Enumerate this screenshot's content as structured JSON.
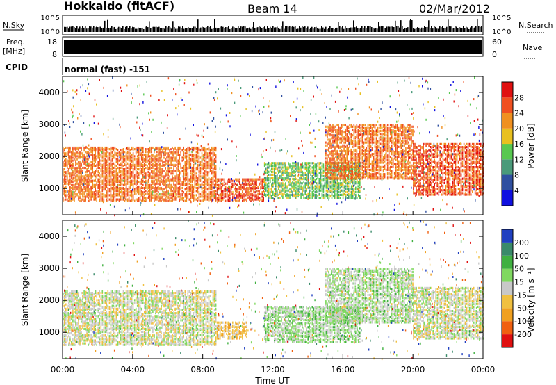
{
  "header": {
    "radar": "Hokkaido (fitACF)",
    "beam": "Beam 14",
    "date": "02/Mar/2012"
  },
  "strips": {
    "nsky_label": "N.Sky",
    "nsearch_label": "N.Search",
    "noise_ticks": [
      "10^5",
      "10^0"
    ],
    "freq_label_top": "Freq.",
    "freq_label_bottom": "[MHz]",
    "freq_ticks": [
      "18",
      "8"
    ],
    "nave_label": "Nave",
    "nave_ticks": [
      "60",
      "0"
    ],
    "cpid_label": "CPID",
    "cpid_text": "normal (fast) -151"
  },
  "axes": {
    "xlabel": "Time UT",
    "xticks": [
      "00:00",
      "04:00",
      "08:00",
      "12:00",
      "16:00",
      "20:00",
      "00:00"
    ],
    "ylabel": "Slant Range [km]",
    "yticks": [
      "1000",
      "2000",
      "3000",
      "4000"
    ]
  },
  "colorbars": {
    "power": {
      "label": "Power [dB]",
      "ticks": [
        "4",
        "8",
        "12",
        "16",
        "20",
        "24",
        "28"
      ],
      "colors": [
        "#1010e0",
        "#3050a0",
        "#4a9a7a",
        "#58c850",
        "#e8c020",
        "#f09020",
        "#f05020",
        "#e01010"
      ]
    },
    "velocity": {
      "label": "Velocity [m s⁻¹]",
      "ticks": [
        "200",
        "100",
        "50",
        "15",
        "-15",
        "-50",
        "-100",
        "-200"
      ],
      "colors": [
        "#2040c0",
        "#3a8a6a",
        "#40b040",
        "#80d860",
        "#c8c8c8",
        "#f0c040",
        "#f0a020",
        "#f06010",
        "#e01010"
      ]
    }
  },
  "chart_data": [
    {
      "type": "heatmap",
      "title": "Power",
      "x_range": [
        "00:00",
        "24:00"
      ],
      "ylim": [
        180,
        4500
      ],
      "value_label": "Power [dB]",
      "clim": [
        0,
        32
      ],
      "regions": [
        {
          "t_start": 0,
          "t_end": 8.8,
          "range_start": 600,
          "range_end": 2300,
          "value": 24
        },
        {
          "t_start": 8.8,
          "t_end": 11.5,
          "range_start": 600,
          "range_end": 1300,
          "value": 26
        },
        {
          "t_start": 11.5,
          "t_end": 17,
          "range_start": 700,
          "range_end": 1800,
          "value": 14
        },
        {
          "t_start": 15,
          "t_end": 20,
          "range_start": 1300,
          "range_end": 3000,
          "value": 24
        },
        {
          "t_start": 20,
          "t_end": 24,
          "range_start": 800,
          "range_end": 2400,
          "value": 26
        }
      ]
    },
    {
      "type": "heatmap",
      "title": "Velocity",
      "x_range": [
        "00:00",
        "24:00"
      ],
      "ylim": [
        180,
        4500
      ],
      "value_label": "Velocity [m s-1]",
      "clim": [
        -250,
        250
      ],
      "regions": [
        {
          "t_start": 0,
          "t_end": 8.8,
          "range_start": 600,
          "range_end": 2300,
          "value": 0
        },
        {
          "t_start": 8.8,
          "t_end": 10.5,
          "range_start": 800,
          "range_end": 1300,
          "value": -60
        },
        {
          "t_start": 11.5,
          "t_end": 17,
          "range_start": 700,
          "range_end": 1800,
          "value": 40
        },
        {
          "t_start": 15,
          "t_end": 20,
          "range_start": 1300,
          "range_end": 3000,
          "value": 30
        },
        {
          "t_start": 20,
          "t_end": 24,
          "range_start": 800,
          "range_end": 2400,
          "value": 0
        }
      ]
    }
  ]
}
